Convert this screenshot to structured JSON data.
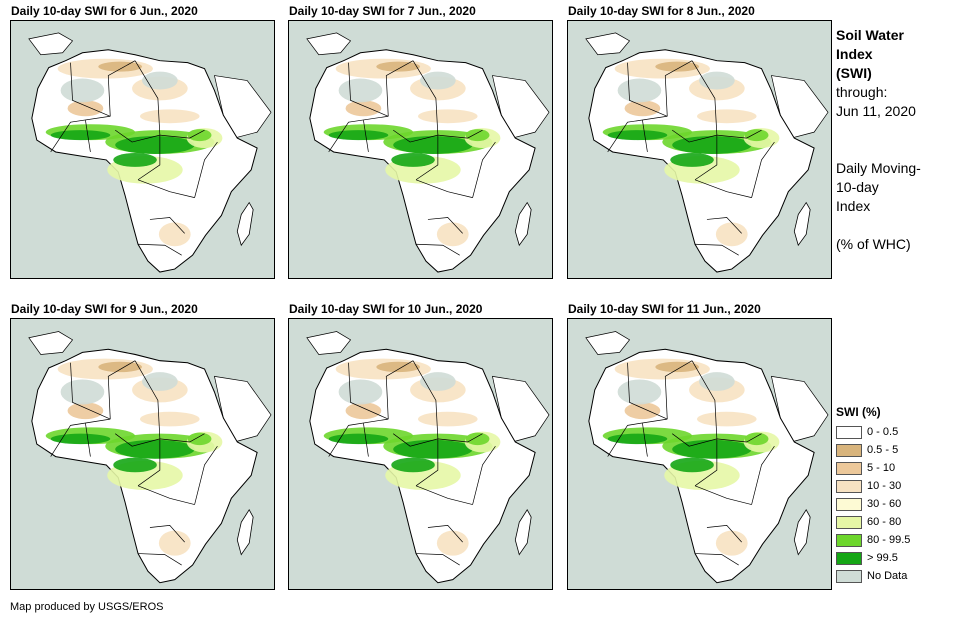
{
  "panels": [
    {
      "title": "Daily 10-day SWI for 6 Jun., 2020"
    },
    {
      "title": "Daily 10-day SWI for 7 Jun., 2020"
    },
    {
      "title": "Daily 10-day SWI for 8 Jun., 2020"
    },
    {
      "title": "Daily 10-day SWI for 9 Jun., 2020"
    },
    {
      "title": "Daily 10-day SWI for 10 Jun., 2020"
    },
    {
      "title": "Daily 10-day SWI for 11 Jun., 2020"
    }
  ],
  "side": {
    "title_lines": [
      "Soil Water",
      "Index",
      "(SWI)"
    ],
    "through_label": "through:",
    "through_date": "Jun 11, 2020",
    "desc_lines": [
      "Daily Moving-",
      "10-day",
      "Index"
    ],
    "unit": "(% of WHC)"
  },
  "legend": {
    "title": "SWI (%)",
    "items": [
      {
        "label": "0 - 0.5",
        "color": "#ffffff"
      },
      {
        "label": "0.5 - 5",
        "color": "#d8b47c"
      },
      {
        "label": "5 - 10",
        "color": "#ecc89a"
      },
      {
        "label": "10 - 30",
        "color": "#f7e2c2"
      },
      {
        "label": "30 - 60",
        "color": "#fdfad4"
      },
      {
        "label": "60 - 80",
        "color": "#e6f7a6"
      },
      {
        "label": "80 - 99.5",
        "color": "#6dd62c"
      },
      {
        "label": "> 99.5",
        "color": "#15a615"
      },
      {
        "label": "No Data",
        "color": "#cfdcd6"
      }
    ]
  },
  "credit": "Map produced by USGS/EROS",
  "colors": {
    "ocean": "#cfdcd6",
    "land": "#ffffff",
    "border": "#000000"
  }
}
